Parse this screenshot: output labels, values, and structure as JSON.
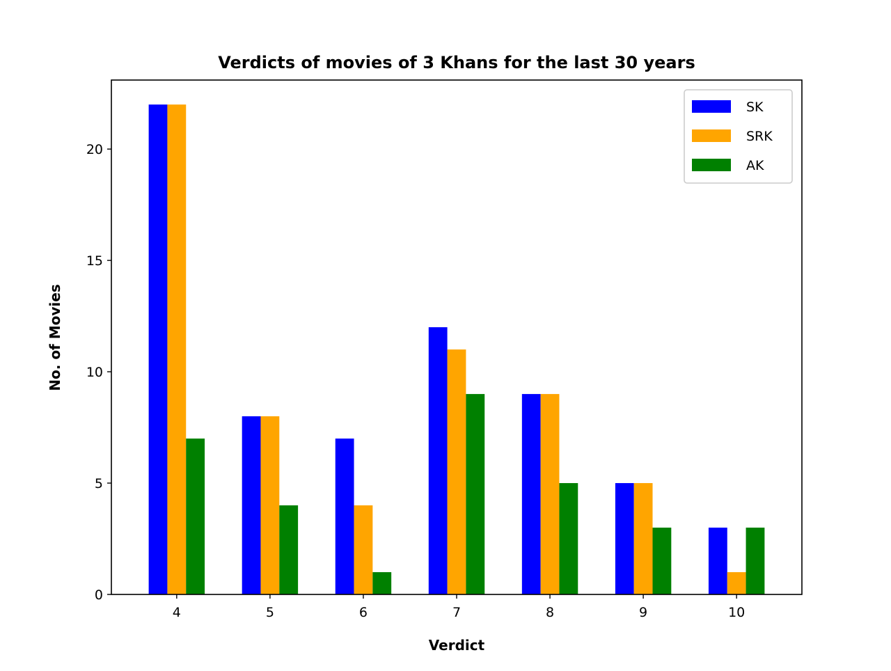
{
  "chart_data": {
    "type": "bar",
    "title": "Verdicts of movies of 3 Khans for the last 30 years",
    "xlabel": "Verdict",
    "ylabel": "No. of Movies",
    "categories": [
      "4",
      "5",
      "6",
      "7",
      "8",
      "9",
      "10"
    ],
    "series": [
      {
        "name": "SK",
        "color": "#0000ff",
        "values": [
          22,
          8,
          7,
          12,
          9,
          5,
          3
        ]
      },
      {
        "name": "SRK",
        "color": "#ffa500",
        "values": [
          22,
          8,
          4,
          11,
          9,
          5,
          1
        ]
      },
      {
        "name": "AK",
        "color": "#008000",
        "values": [
          7,
          4,
          1,
          9,
          5,
          3,
          3
        ]
      }
    ],
    "ylim": [
      0,
      23.1
    ],
    "yticks": [
      0,
      5,
      10,
      15,
      20
    ],
    "grid": false,
    "legend_position": "top-right"
  }
}
